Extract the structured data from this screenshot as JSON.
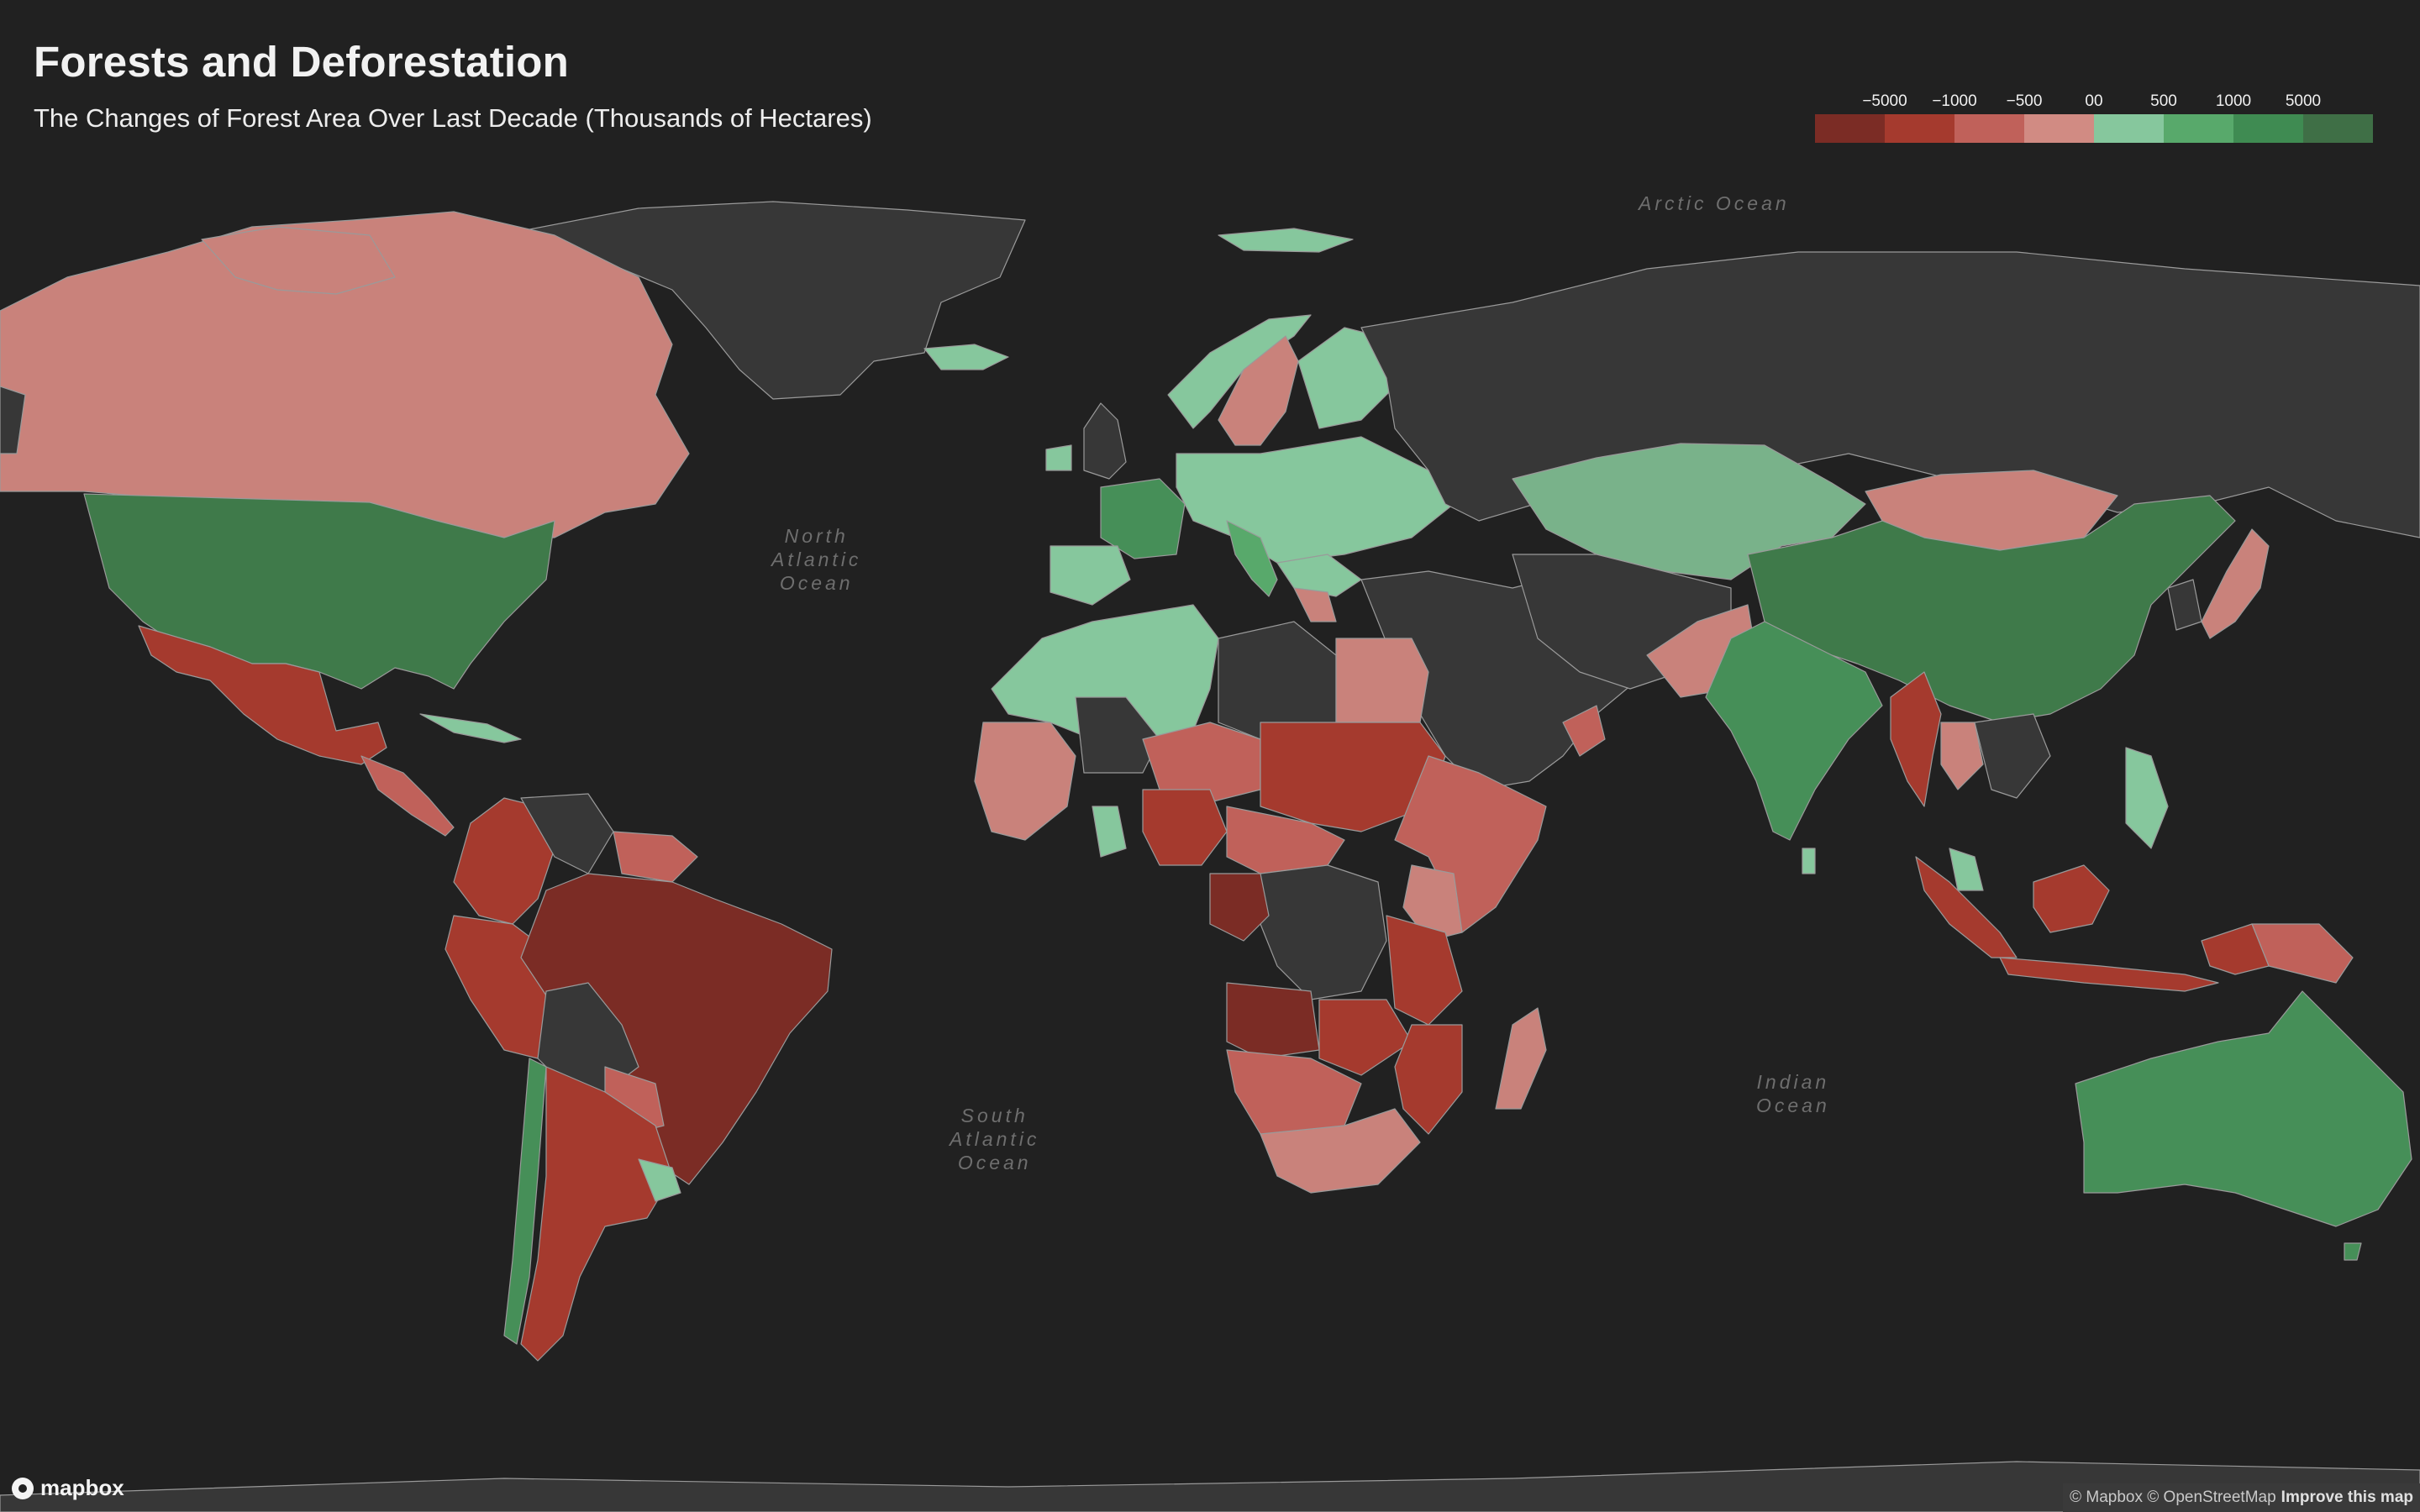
{
  "title": "Forests and Deforestation",
  "subtitle": "The Changes of Forest Area Over Last Decade (Thousands of Hectares)",
  "legend": {
    "labels": [
      "−5000",
      "−1000",
      "−500",
      "00",
      "500",
      "1000",
      "5000"
    ],
    "colors": [
      "#7b2c25",
      "#a53a2e",
      "#c0615a",
      "#d18b83",
      "#86c79d",
      "#58a96b",
      "#3f8b52",
      "#3f6f46"
    ]
  },
  "map_colors": {
    "land_no_data": "#373737",
    "water": "#212121",
    "border": "#9a9a9a",
    "loss_5000": "#7b2c25",
    "loss_1000": "#a53a2e",
    "loss_500": "#c0615a",
    "loss_0": "#c9827b",
    "gain_0": "#86c79d",
    "gain_500": "#79b28a",
    "gain_1000": "#468f58",
    "gain_5000": "#3f7a4a"
  },
  "oceans": {
    "arctic": "Arctic Ocean",
    "north_atlantic": "North\nAtlantic\nOcean",
    "south_atlantic": "South\nAtlantic\nOcean",
    "indian": "Indian\nOcean"
  },
  "logo": "mapbox",
  "attribution": {
    "text": "© Mapbox © OpenStreetMap",
    "link": "Improve this map"
  }
}
